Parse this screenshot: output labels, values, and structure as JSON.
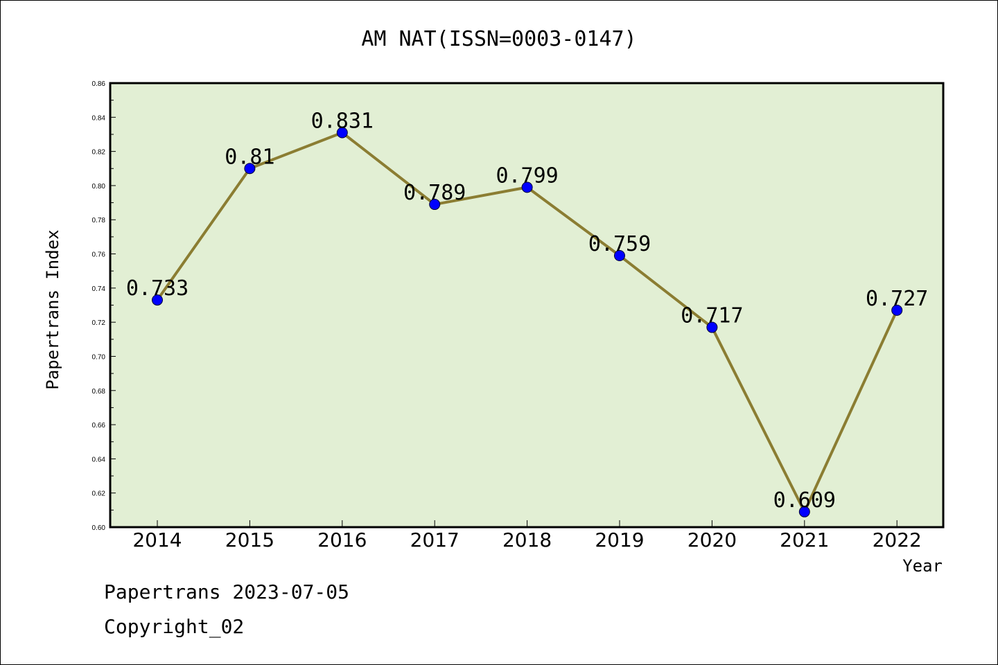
{
  "chart_data": {
    "type": "line",
    "title": "AM NAT(ISSN=0003-0147)",
    "xlabel": "Year",
    "ylabel": "Papertrans Index",
    "categories": [
      "2014",
      "2015",
      "2016",
      "2017",
      "2018",
      "2019",
      "2020",
      "2021",
      "2022"
    ],
    "series": [
      {
        "values": [
          0.733,
          0.81,
          0.831,
          0.789,
          0.799,
          0.759,
          0.717,
          0.609,
          0.727
        ],
        "labels": [
          "0.733",
          "0.81",
          "0.831",
          "0.789",
          "0.799",
          "0.759",
          "0.717",
          "0.609",
          "0.727"
        ]
      }
    ],
    "ylim": [
      0.6,
      0.86
    ],
    "yticks": [
      "0.60",
      "0.62",
      "0.64",
      "0.66",
      "0.68",
      "0.70",
      "0.72",
      "0.74",
      "0.76",
      "0.78",
      "0.80",
      "0.82",
      "0.84",
      "0.86"
    ],
    "grid": false,
    "colors": {
      "plot_background": "#e2efd4",
      "line": "#8b7d32",
      "marker": "#0000ff"
    }
  },
  "footer": {
    "line1": "Papertrans 2023-07-05",
    "line2": "Copyright_02"
  }
}
